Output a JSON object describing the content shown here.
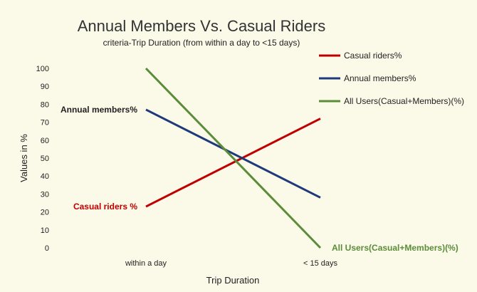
{
  "chart_data": {
    "type": "line",
    "title": "Annual Members Vs. Casual Riders",
    "subtitle": "criteria-Trip Duration (from within a day to <15 days)",
    "xlabel": "Trip Duration",
    "ylabel": "Values in %",
    "categories": [
      "within a day",
      "< 15 days"
    ],
    "ylim": [
      0,
      100
    ],
    "yticks": [
      0,
      10,
      20,
      30,
      40,
      50,
      60,
      70,
      80,
      90,
      100
    ],
    "grid": false,
    "legend_position": "top-right",
    "series": [
      {
        "name": "Casual riders%",
        "values": [
          23,
          72
        ],
        "color": "#c00000",
        "annotation": "Casual riders %",
        "annotation_at": "start"
      },
      {
        "name": "Annual members%",
        "values": [
          77,
          28
        ],
        "color": "#1f3a7a",
        "annotation": "Annual members%",
        "annotation_at": "start"
      },
      {
        "name": "All Users(Casual+Members)(%)",
        "values": [
          100,
          0
        ],
        "color": "#5b8c3a",
        "annotation": "All Users(Casual+Members)(%)",
        "annotation_at": "end"
      }
    ]
  }
}
